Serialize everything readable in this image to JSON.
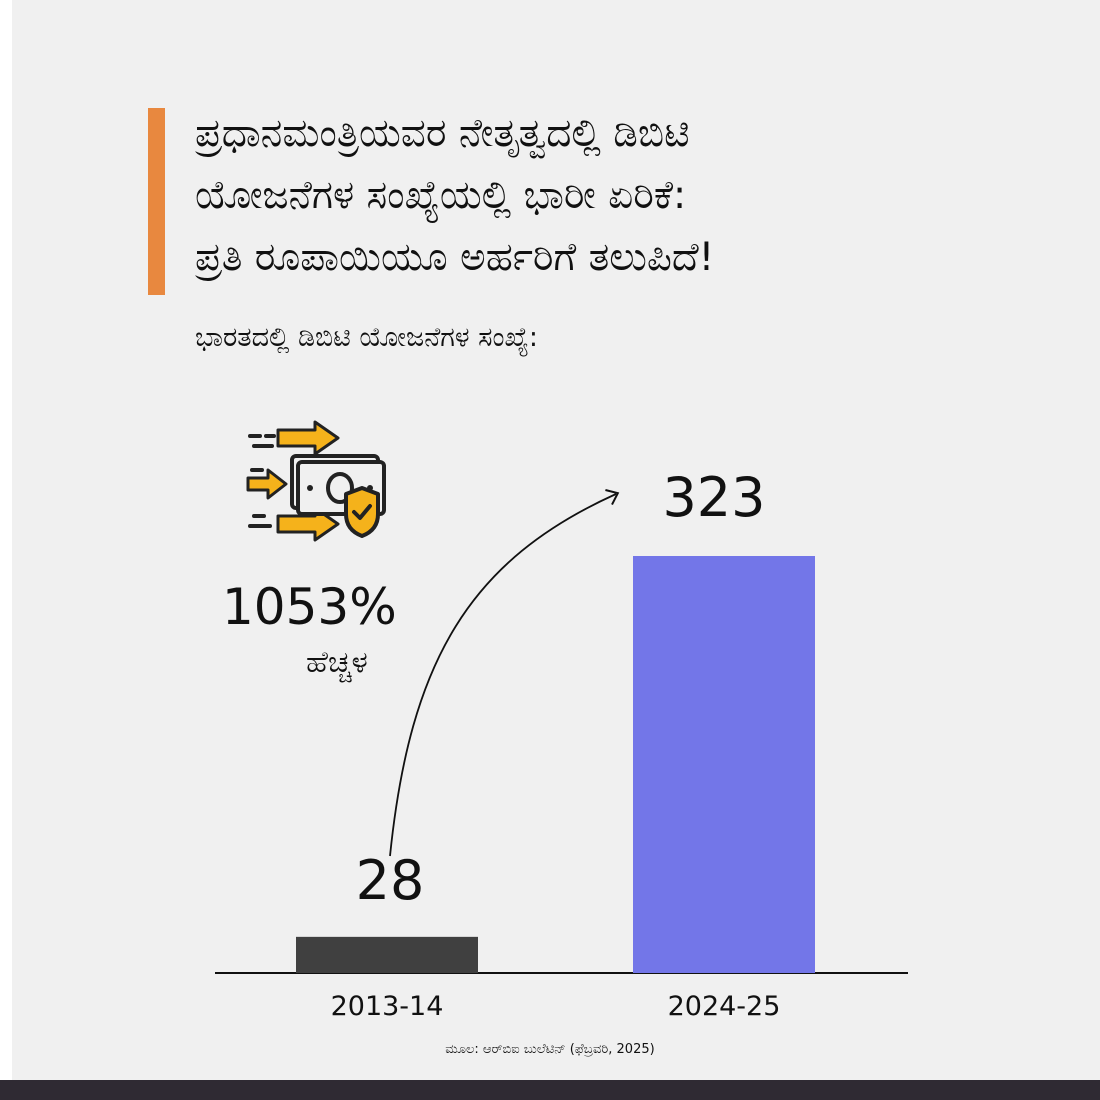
{
  "headline": {
    "lines": [
      "ಪ್ರಧಾನಮಂತ್ರಿಯವರ ನೇತೃತ್ವದಲ್ಲಿ ಡಿಬಿಟಿ",
      "ಯೋಜನೆಗಳ ಸಂಖ್ಯೆಯಲ್ಲಿ  ಭಾರೀ ಏರಿಕೆ:",
      "ಪ್ರತಿ ರೂಪಾಯಿಯೂ ಅರ್ಹರಿಗೆ ತಲುಪಿದೆ!"
    ]
  },
  "subtitle": "ಭಾರತದಲ್ಲಿ ಡಿಬಿಟಿ ಯೋಜನೆಗಳ ಸಂಖ್ಯೆ:",
  "highlight": {
    "percent": "1053%",
    "label": "ಹೆಚ್ಚಳ",
    "icon": "money-transfer-icon"
  },
  "chart_data": {
    "type": "bar",
    "categories": [
      "2013-14",
      "2024-25"
    ],
    "values": [
      28,
      323
    ],
    "value_labels": [
      "28",
      "323"
    ],
    "ylim": [
      0,
      323
    ],
    "colors": [
      "#404040",
      "#7376e8"
    ],
    "grid": false,
    "annotation": "curved-arrow"
  },
  "source": "ಮೂಲ: ಆರ್‌ಬಿಐ ಬುಲೆಟಿನ್ (ಫೆಬ್ರವರಿ, 2025)",
  "colors": {
    "background": "#f0f0f0",
    "accent": "#e8883f",
    "footer": "#2f2a33",
    "icon_yellow": "#f5b21b"
  }
}
